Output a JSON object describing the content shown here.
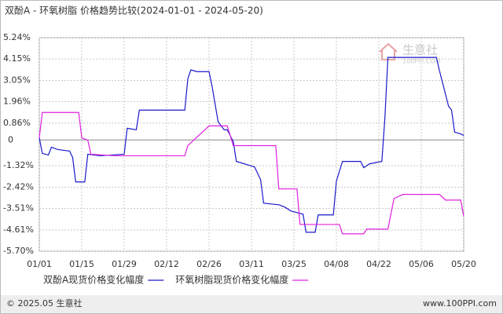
{
  "chart_data": {
    "type": "line",
    "title": "双酚A - 环氧树脂 价格趋势比较(2024-01-01 - 2024-05-20)",
    "xlim": [
      "01/01",
      "05/20"
    ],
    "xticks": [
      "01/01",
      "01/15",
      "01/29",
      "02/12",
      "02/26",
      "03/11",
      "03/25",
      "04/08",
      "04/22",
      "05/06",
      "05/20"
    ],
    "ylim": [
      -5.7,
      5.24
    ],
    "yticks": [
      {
        "value": 5.24,
        "label": "5.24%"
      },
      {
        "value": 4.15,
        "label": "4.15%"
      },
      {
        "value": 3.05,
        "label": "3.05%"
      },
      {
        "value": 1.96,
        "label": "1.96%"
      },
      {
        "value": 0.86,
        "label": "0.86%"
      },
      0,
      {
        "value": -1.32,
        "label": "-1.32%"
      },
      {
        "value": -2.42,
        "label": "-2.42%"
      },
      {
        "value": -3.51,
        "label": "-3.51%"
      },
      {
        "value": -4.61,
        "label": "-4.61%"
      },
      {
        "value": -5.7,
        "label": "-5.70%"
      }
    ],
    "grid": true,
    "series": [
      {
        "name": "双酚A现货价格变化幅度",
        "color": "#1a1acc",
        "x": [
          "01/01",
          "01/02",
          "01/04",
          "01/05",
          "01/07",
          "01/11",
          "01/12",
          "01/13",
          "01/16",
          "01/17",
          "01/21",
          "01/29",
          "01/30",
          "02/02",
          "02/03",
          "02/18",
          "02/19",
          "02/20",
          "02/22",
          "02/26",
          "02/27",
          "02/29",
          "03/02",
          "03/03",
          "03/05",
          "03/06",
          "03/12",
          "03/14",
          "03/15",
          "03/20",
          "03/22",
          "03/24",
          "03/28",
          "03/29",
          "04/01",
          "04/02",
          "04/07",
          "04/08",
          "04/10",
          "04/16",
          "04/17",
          "04/19",
          "04/23",
          "04/24",
          "04/25",
          "05/11",
          "05/12",
          "05/15",
          "05/16",
          "05/17",
          "05/19",
          "05/20"
        ],
        "values": [
          0.11,
          -0.69,
          -0.77,
          -0.37,
          -0.49,
          -0.57,
          -0.9,
          -2.15,
          -2.15,
          -0.73,
          -0.81,
          -0.73,
          0.6,
          0.52,
          1.53,
          1.53,
          3.14,
          3.59,
          3.5,
          3.5,
          2.74,
          0.92,
          0.52,
          0.52,
          -0.09,
          -1.1,
          -1.38,
          -2.03,
          -3.24,
          -3.32,
          -3.44,
          -3.64,
          -3.8,
          -4.73,
          -4.73,
          -3.84,
          -3.84,
          -2.11,
          -1.1,
          -1.1,
          -1.42,
          -1.22,
          -1.1,
          1.12,
          4.23,
          4.23,
          3.55,
          1.73,
          1.53,
          0.4,
          0.31,
          0.23
        ]
      },
      {
        "name": "环氧树脂现货价格变化幅度",
        "color": "#e020e0",
        "x": [
          "01/01",
          "01/02",
          "01/14",
          "01/15",
          "01/17",
          "01/18",
          "01/26",
          "02/18",
          "02/19",
          "02/26",
          "03/03",
          "03/05",
          "03/19",
          "03/20",
          "03/26",
          "03/27",
          "04/09",
          "04/10",
          "04/17",
          "04/18",
          "04/25",
          "04/27",
          "04/30",
          "05/12",
          "05/14",
          "05/19",
          "05/20"
        ],
        "values": [
          0.11,
          1.41,
          1.41,
          0.11,
          -0.01,
          -0.73,
          -0.81,
          -0.81,
          -0.29,
          0.72,
          0.72,
          -0.29,
          -0.29,
          -2.51,
          -2.51,
          -4.33,
          -4.33,
          -4.81,
          -4.81,
          -4.57,
          -4.57,
          -3.0,
          -2.79,
          -2.79,
          -3.08,
          -3.08,
          -3.92
        ]
      }
    ],
    "watermark": {
      "name": "生意社",
      "site": "100PPI.COM"
    },
    "footer": {
      "left": "© 2025.05 生意社",
      "right": "www.100PPI.com"
    }
  }
}
